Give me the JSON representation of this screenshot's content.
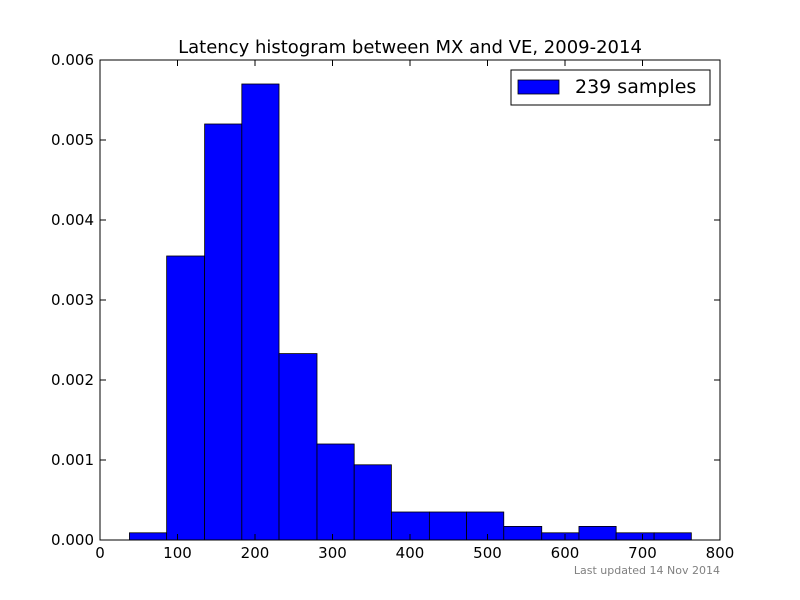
{
  "chart_data": {
    "type": "bar",
    "title": "Latency histogram between MX and VE, 2009-2014",
    "xlabel": "",
    "ylabel": "",
    "xlim": [
      0,
      800
    ],
    "ylim": [
      0,
      0.006
    ],
    "x_ticks": [
      "0",
      "100",
      "200",
      "300",
      "400",
      "500",
      "600",
      "700",
      "800"
    ],
    "y_ticks": [
      "0.000",
      "0.001",
      "0.002",
      "0.003",
      "0.004",
      "0.005",
      "0.006"
    ],
    "bins": [
      {
        "start": 38,
        "end": 86,
        "value": 9e-05
      },
      {
        "start": 86,
        "end": 135,
        "value": 0.00355
      },
      {
        "start": 135,
        "end": 183,
        "value": 0.0052
      },
      {
        "start": 183,
        "end": 231,
        "value": 0.0057
      },
      {
        "start": 231,
        "end": 280,
        "value": 0.00233
      },
      {
        "start": 280,
        "end": 328,
        "value": 0.0012
      },
      {
        "start": 328,
        "end": 376,
        "value": 0.00094
      },
      {
        "start": 376,
        "end": 425,
        "value": 0.00035
      },
      {
        "start": 425,
        "end": 473,
        "value": 0.00035
      },
      {
        "start": 473,
        "end": 521,
        "value": 0.00035
      },
      {
        "start": 521,
        "end": 570,
        "value": 0.00017
      },
      {
        "start": 570,
        "end": 618,
        "value": 9e-05
      },
      {
        "start": 618,
        "end": 666,
        "value": 0.00017
      },
      {
        "start": 666,
        "end": 715,
        "value": 9e-05
      },
      {
        "start": 715,
        "end": 763,
        "value": 9e-05
      }
    ],
    "series": [
      {
        "name": "239 samples",
        "color": "#0000ff"
      }
    ],
    "legend_position": "top-right",
    "grid": false
  },
  "footer": {
    "note": "Last updated 14 Nov 2014"
  }
}
